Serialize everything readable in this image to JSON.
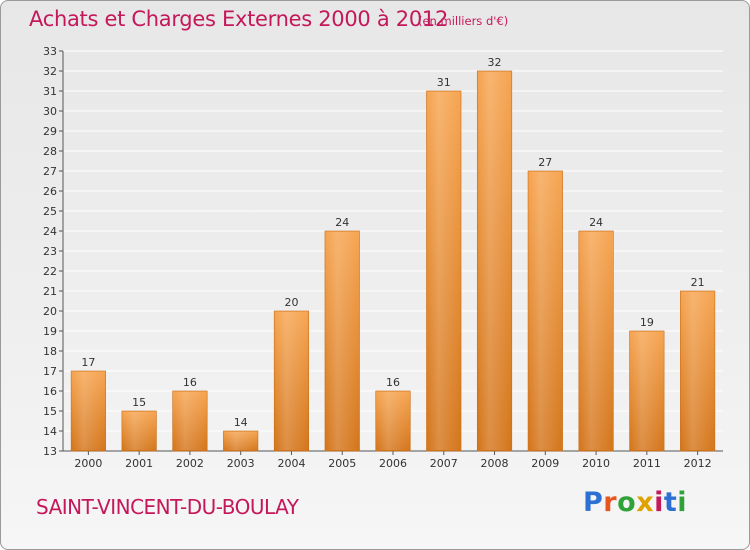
{
  "header": {
    "title": "Achats et Charges Externes 2000 à 2012",
    "subtitle": "(en milliers d'€)"
  },
  "footer": {
    "town": "SAINT-VINCENT-DU-BOULAY",
    "logo_text": "Proxiti",
    "logo_colors": [
      "#2e6fd3",
      "#e8561f",
      "#2fa33a",
      "#e0a200",
      "#c4185a",
      "#2e6fd3",
      "#2fa33a"
    ]
  },
  "chart_data": {
    "type": "bar",
    "title": "Achats et Charges Externes 2000 à 2012",
    "subtitle": "(en milliers d'€)",
    "xlabel": "",
    "ylabel": "",
    "categories": [
      "2000",
      "2001",
      "2002",
      "2003",
      "2004",
      "2005",
      "2006",
      "2007",
      "2008",
      "2009",
      "2010",
      "2011",
      "2012"
    ],
    "values": [
      17,
      15,
      16,
      14,
      20,
      24,
      16,
      31,
      32,
      27,
      24,
      19,
      21
    ],
    "ylim": [
      13,
      33
    ],
    "yticks": [
      13,
      14,
      15,
      16,
      17,
      18,
      19,
      20,
      21,
      22,
      23,
      24,
      25,
      26,
      27,
      28,
      29,
      30,
      31,
      32,
      33
    ],
    "grid": true,
    "legend": "none",
    "data_labels": true,
    "colors": {
      "bar_light": "#f6a552",
      "bar_dark": "#d4761c",
      "grid": "#ffffff"
    }
  }
}
